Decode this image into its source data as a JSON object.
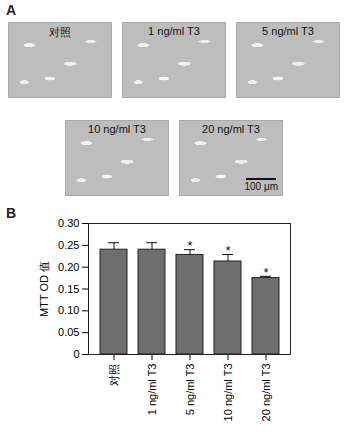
{
  "panel_a": {
    "label": "A",
    "images": [
      "对照",
      "1 ng/ml T3",
      "5 ng/ml T3",
      "10 ng/ml T3",
      "20 ng/ml T3"
    ],
    "scale_bar": "100 μm"
  },
  "chart_data": {
    "type": "bar",
    "panel_label": "B",
    "y_label": "MTT OD 值",
    "categories": [
      "对照",
      "1 ng/ml T3",
      "5 ng/ml T3",
      "10 ng/ml T3",
      "20 ng/ml T3"
    ],
    "values": [
      0.24,
      0.24,
      0.228,
      0.213,
      0.175
    ],
    "errors": [
      0.016,
      0.016,
      0.012,
      0.016,
      0.004
    ],
    "annotations": [
      null,
      null,
      "*",
      "*",
      "*"
    ],
    "color": "#6e6e6e",
    "ylim": [
      0,
      0.3
    ],
    "yticks": [
      0,
      0.05,
      {
        "value": 0.1,
        "label": "0.10"
      },
      0.15,
      {
        "value": 0.2,
        "label": "0.20"
      },
      0.25,
      {
        "value": 0.3,
        "label": "0.30"
      }
    ],
    "grid": false
  }
}
